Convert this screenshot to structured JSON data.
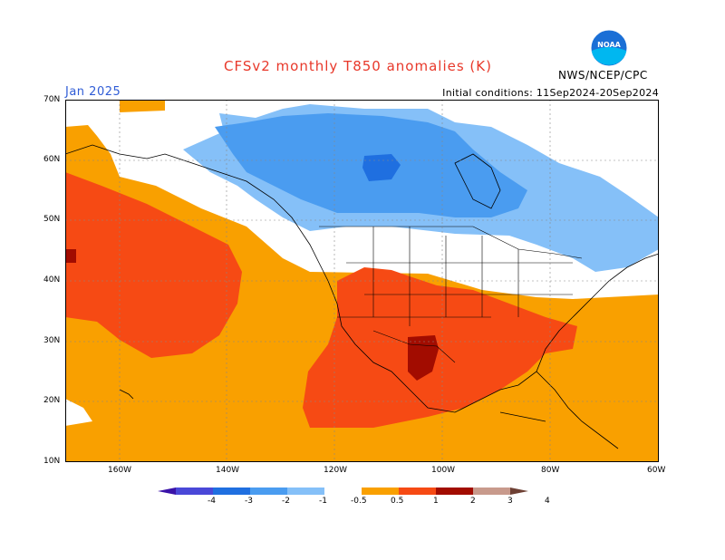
{
  "header": {
    "title": "CFSv2 monthly T850 anomalies (K)",
    "month": "Jan 2025",
    "initial_conditions": "Initial conditions: 11Sep2024-20Sep2024",
    "agency": "NWS/NCEP/CPC",
    "logo_text": "NOAA"
  },
  "axes": {
    "lat_ticks": [
      "70N",
      "60N",
      "50N",
      "40N",
      "30N",
      "20N",
      "10N"
    ],
    "lon_ticks": [
      "160W",
      "140W",
      "120W",
      "100W",
      "80W",
      "60W"
    ]
  },
  "legend": {
    "labels": [
      "-4",
      "-3",
      "-2",
      "-1",
      "-0.5",
      "0.5",
      "1",
      "2",
      "3",
      "4"
    ],
    "colors": [
      "#3a12a8",
      "#4a48d8",
      "#1f6fe0",
      "#4a9cf0",
      "#85c0f8",
      "#ffffff",
      "#f9a000",
      "#f64a14",
      "#a20c00",
      "#c89a8c",
      "#6e4034"
    ]
  },
  "colors": {
    "title": "#e8382a",
    "month": "#2f5cd6",
    "ocean_warm": "#f9a000"
  }
}
